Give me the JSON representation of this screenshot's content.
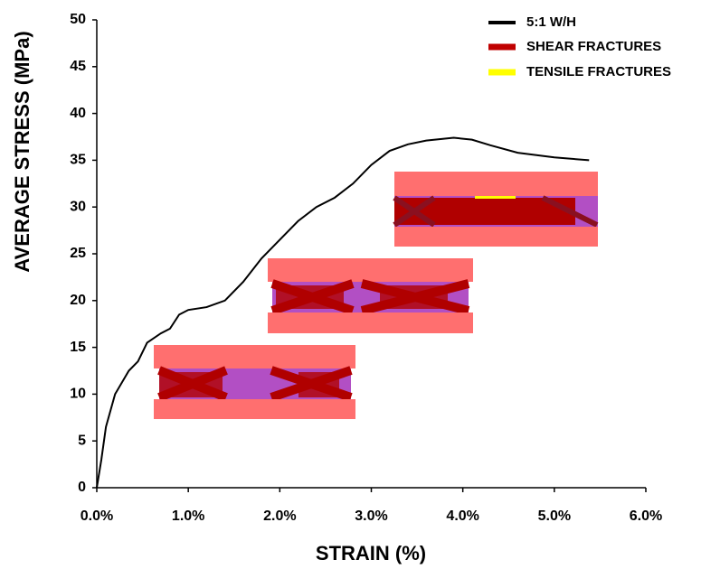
{
  "chart_data": {
    "type": "line",
    "xlabel": "STRAIN (%)",
    "ylabel": "AVERAGE STRESS (MPa)",
    "x": [
      0,
      0.05,
      0.1,
      0.2,
      0.35,
      0.45,
      0.55,
      0.7,
      0.8,
      0.9,
      1.0,
      1.2,
      1.4,
      1.6,
      1.8,
      2.0,
      2.2,
      2.4,
      2.6,
      2.8,
      3.0,
      3.2,
      3.4,
      3.6,
      3.9,
      4.1,
      4.3,
      4.6,
      5.0,
      5.38
    ],
    "series": [
      {
        "name": "5:1 W/H",
        "color": "#000000",
        "values": [
          0,
          3,
          6.5,
          10,
          12.5,
          13.5,
          15.5,
          16.5,
          17,
          18.5,
          19,
          19.3,
          20,
          22,
          24.5,
          26.5,
          28.5,
          30,
          31,
          32.5,
          34.5,
          36,
          36.7,
          37.1,
          37.4,
          37.2,
          36.6,
          35.8,
          35.3,
          35
        ]
      }
    ],
    "fracture_legend": [
      {
        "name": "SHEAR FRACTURES",
        "color": "#c00000"
      },
      {
        "name": "TENSILE FRACTURES",
        "color": "#ffff00"
      }
    ],
    "xlim": [
      0,
      6
    ],
    "ylim": [
      0,
      50
    ],
    "xticks": [
      {
        "value": 0,
        "label": "0.0%"
      },
      {
        "value": 1,
        "label": "1.0%"
      },
      {
        "value": 2,
        "label": "2.0%"
      },
      {
        "value": 3,
        "label": "3.0%"
      },
      {
        "value": 4,
        "label": "4.0%"
      },
      {
        "value": 5,
        "label": "5.0%"
      },
      {
        "value": 6,
        "label": "6.0%"
      }
    ],
    "yticks": [
      0,
      5,
      10,
      15,
      20,
      25,
      30,
      35,
      40,
      45,
      50
    ]
  }
}
